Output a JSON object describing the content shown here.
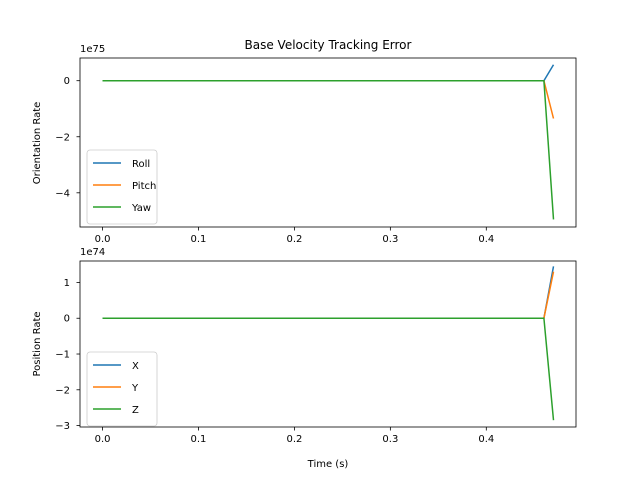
{
  "chart_data": [
    {
      "type": "line",
      "title": "Base Velocity Tracking Error",
      "xlabel": "",
      "ylabel": "Orientation Rate",
      "y_scale_exponent": "1e75",
      "xlim": [
        -0.0235,
        0.4935
      ],
      "ylim": [
        -5.22,
        0.81
      ],
      "x_ticks": [
        0.0,
        0.1,
        0.2,
        0.3,
        0.4
      ],
      "x_tick_labels": [
        "0.0",
        "0.1",
        "0.2",
        "0.3",
        "0.4"
      ],
      "y_ticks": [
        0,
        -2,
        -4
      ],
      "y_tick_labels": [
        "0",
        "−2",
        "−4"
      ],
      "legend_position": "lower left",
      "grid": false,
      "series": [
        {
          "name": "Roll",
          "color": "#1f77b4",
          "x": [
            0.0,
            0.46,
            0.47
          ],
          "y": [
            0,
            0,
            0.57
          ]
        },
        {
          "name": "Pitch",
          "color": "#ff7f0e",
          "x": [
            0.0,
            0.46,
            0.47
          ],
          "y": [
            0,
            0,
            -1.35
          ]
        },
        {
          "name": "Yaw",
          "color": "#2ca02c",
          "x": [
            0.0,
            0.46,
            0.47
          ],
          "y": [
            0,
            0,
            -4.95
          ]
        }
      ]
    },
    {
      "type": "line",
      "title": "",
      "xlabel": "Time (s)",
      "ylabel": "Position Rate",
      "y_scale_exponent": "1e74",
      "xlim": [
        -0.0235,
        0.4935
      ],
      "ylim": [
        -3.04,
        1.6
      ],
      "x_ticks": [
        0.0,
        0.1,
        0.2,
        0.3,
        0.4
      ],
      "x_tick_labels": [
        "0.0",
        "0.1",
        "0.2",
        "0.3",
        "0.4"
      ],
      "y_ticks": [
        1,
        0,
        -1,
        -2,
        -3
      ],
      "y_tick_labels": [
        "1",
        "0",
        "−1",
        "−2",
        "−3"
      ],
      "legend_position": "lower left",
      "grid": false,
      "series": [
        {
          "name": "X",
          "color": "#1f77b4",
          "x": [
            0.0,
            0.46,
            0.47
          ],
          "y": [
            0,
            0,
            1.45
          ]
        },
        {
          "name": "Y",
          "color": "#ff7f0e",
          "x": [
            0.0,
            0.46,
            0.47
          ],
          "y": [
            0,
            0,
            1.3
          ]
        },
        {
          "name": "Z",
          "color": "#2ca02c",
          "x": [
            0.0,
            0.46,
            0.47
          ],
          "y": [
            0,
            0,
            -2.85
          ]
        }
      ]
    }
  ]
}
